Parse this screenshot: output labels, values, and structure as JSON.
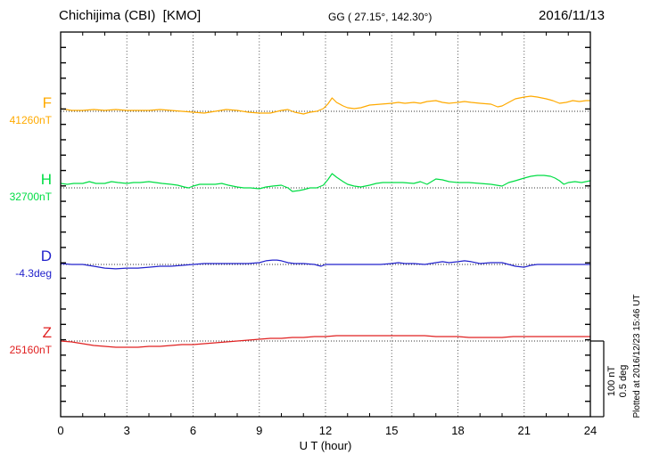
{
  "header": {
    "station": "Chichijima (CBI)  [KMO]",
    "coords": "GG ( 27.15°, 142.30°)",
    "date": "2016/11/13"
  },
  "x_axis": {
    "label": "U T (hour)"
  },
  "scale_bar": {
    "line1": "100 nT",
    "line2": "0.5 deg"
  },
  "plot_note": "Plotted at 2016/12/23 15:46 UT",
  "colors": {
    "F": "#ffaa00",
    "H": "#00dd44",
    "D": "#2222cc",
    "Z": "#e02020",
    "axis": "#000000",
    "grid": "#555555"
  },
  "chart_data": {
    "type": "line",
    "title": "Chichijima (CBI) [KMO] magnetogram for 2016/11/13",
    "xlabel": "U T (hour)",
    "x_range": [
      0,
      24
    ],
    "x_ticks": [
      0,
      3,
      6,
      9,
      12,
      15,
      18,
      21,
      24
    ],
    "grid": "vertical dotted lines every 3 h; dotted horizontal baseline per channel",
    "scale_reference": {
      "nT_per_bar": 100,
      "deg_per_bar": 0.5
    },
    "points_format": "[hour_UT, offset_from_base_value_in_unit]",
    "series": [
      {
        "name": "F",
        "base_label": "41260nT",
        "base_value": 41260,
        "unit": "nT",
        "color": "#ffaa00",
        "points": [
          [
            0,
            3.5
          ],
          [
            0.5,
            1.2
          ],
          [
            1,
            1.2
          ],
          [
            1.5,
            2.4
          ],
          [
            2,
            1.2
          ],
          [
            2.5,
            2.4
          ],
          [
            3,
            1.2
          ],
          [
            3.5,
            1.2
          ],
          [
            4,
            1.2
          ],
          [
            4.5,
            2.4
          ],
          [
            5,
            1.2
          ],
          [
            5.5,
            0
          ],
          [
            6,
            -1.2
          ],
          [
            6.5,
            -2.4
          ],
          [
            7,
            0
          ],
          [
            7.5,
            2.4
          ],
          [
            8,
            1.2
          ],
          [
            8.5,
            -1.2
          ],
          [
            9,
            -2.4
          ],
          [
            9.5,
            -2.4
          ],
          [
            10,
            1.2
          ],
          [
            10.3,
            2.4
          ],
          [
            10.6,
            -1.2
          ],
          [
            11,
            -3.5
          ],
          [
            11.3,
            -1.2
          ],
          [
            11.6,
            0
          ],
          [
            11.9,
            3.5
          ],
          [
            12.1,
            9.4
          ],
          [
            12.3,
            17.6
          ],
          [
            12.5,
            11.8
          ],
          [
            12.8,
            7.1
          ],
          [
            13,
            4.7
          ],
          [
            13.3,
            3.5
          ],
          [
            13.6,
            4.7
          ],
          [
            14,
            8.2
          ],
          [
            14.5,
            9.4
          ],
          [
            15,
            10.6
          ],
          [
            15.3,
            11.8
          ],
          [
            15.6,
            10.6
          ],
          [
            16,
            11.8
          ],
          [
            16.3,
            10.6
          ],
          [
            16.6,
            12.9
          ],
          [
            17,
            14.1
          ],
          [
            17.3,
            11.8
          ],
          [
            17.6,
            10.6
          ],
          [
            18,
            11.8
          ],
          [
            18.3,
            12.9
          ],
          [
            18.6,
            11.8
          ],
          [
            19,
            10.6
          ],
          [
            19.5,
            9.4
          ],
          [
            19.8,
            5.9
          ],
          [
            20,
            7.1
          ],
          [
            20.3,
            11.8
          ],
          [
            20.6,
            16.5
          ],
          [
            21,
            18.8
          ],
          [
            21.3,
            20
          ],
          [
            21.6,
            18.8
          ],
          [
            22,
            16.5
          ],
          [
            22.3,
            14.1
          ],
          [
            22.6,
            10.6
          ],
          [
            22.9,
            11.8
          ],
          [
            23.2,
            14.1
          ],
          [
            23.5,
            12.9
          ],
          [
            23.8,
            14.1
          ],
          [
            24,
            14.1
          ]
        ]
      },
      {
        "name": "H",
        "base_label": "32700nT",
        "base_value": 32700,
        "unit": "nT",
        "color": "#00dd44",
        "points": [
          [
            0,
            5.9
          ],
          [
            0.3,
            4.7
          ],
          [
            0.6,
            5.9
          ],
          [
            1,
            5.9
          ],
          [
            1.3,
            8.2
          ],
          [
            1.6,
            5.9
          ],
          [
            2,
            5.9
          ],
          [
            2.3,
            8.2
          ],
          [
            2.6,
            7.1
          ],
          [
            3,
            5.9
          ],
          [
            3.3,
            7.1
          ],
          [
            3.6,
            7.1
          ],
          [
            4,
            8.2
          ],
          [
            4.3,
            7.1
          ],
          [
            4.6,
            5.9
          ],
          [
            5,
            4.7
          ],
          [
            5.3,
            3.5
          ],
          [
            5.6,
            1.2
          ],
          [
            5.8,
            0
          ],
          [
            6,
            2.4
          ],
          [
            6.3,
            4.7
          ],
          [
            6.6,
            4.7
          ],
          [
            7,
            4.7
          ],
          [
            7.3,
            5.9
          ],
          [
            7.6,
            3.5
          ],
          [
            8,
            1.2
          ],
          [
            8.3,
            0
          ],
          [
            8.6,
            0
          ],
          [
            9,
            -1.2
          ],
          [
            9.3,
            1.2
          ],
          [
            9.6,
            2.4
          ],
          [
            10,
            3.5
          ],
          [
            10.3,
            0
          ],
          [
            10.5,
            -4.7
          ],
          [
            10.8,
            -3.5
          ],
          [
            11,
            -2.4
          ],
          [
            11.3,
            0
          ],
          [
            11.6,
            0
          ],
          [
            11.9,
            3.5
          ],
          [
            12.1,
            10.6
          ],
          [
            12.3,
            18.8
          ],
          [
            12.5,
            14.1
          ],
          [
            12.8,
            8.2
          ],
          [
            13,
            4.7
          ],
          [
            13.3,
            2.4
          ],
          [
            13.6,
            1.2
          ],
          [
            14,
            3.5
          ],
          [
            14.3,
            5.9
          ],
          [
            14.6,
            7.1
          ],
          [
            15,
            7.1
          ],
          [
            15.5,
            7.1
          ],
          [
            16,
            5.9
          ],
          [
            16.3,
            8.2
          ],
          [
            16.6,
            4.7
          ],
          [
            17,
            11.8
          ],
          [
            17.3,
            10.6
          ],
          [
            17.6,
            8.2
          ],
          [
            18,
            7.1
          ],
          [
            18.5,
            7.1
          ],
          [
            19,
            5.9
          ],
          [
            19.5,
            4.7
          ],
          [
            20,
            2.4
          ],
          [
            20.3,
            7.1
          ],
          [
            20.6,
            9.4
          ],
          [
            21,
            12.9
          ],
          [
            21.3,
            15.3
          ],
          [
            21.6,
            16.5
          ],
          [
            21.9,
            16.5
          ],
          [
            22.2,
            15.3
          ],
          [
            22.4,
            12.9
          ],
          [
            22.6,
            9.4
          ],
          [
            22.8,
            4.7
          ],
          [
            23,
            7.1
          ],
          [
            23.3,
            8.2
          ],
          [
            23.6,
            7.1
          ],
          [
            24,
            9.4
          ]
        ]
      },
      {
        "name": "D",
        "base_label": "-4.3deg",
        "base_value": -4.3,
        "unit": "deg",
        "color": "#2222cc",
        "points": [
          [
            0,
            0.006
          ],
          [
            0.5,
            0
          ],
          [
            1,
            0
          ],
          [
            1.5,
            -0.012
          ],
          [
            2,
            -0.024
          ],
          [
            2.5,
            -0.029
          ],
          [
            3,
            -0.024
          ],
          [
            3.5,
            -0.024
          ],
          [
            4,
            -0.018
          ],
          [
            4.5,
            -0.012
          ],
          [
            5,
            -0.012
          ],
          [
            5.5,
            -0.006
          ],
          [
            6,
            0
          ],
          [
            6.5,
            0.006
          ],
          [
            7,
            0.006
          ],
          [
            7.5,
            0.006
          ],
          [
            8,
            0.006
          ],
          [
            8.5,
            0.006
          ],
          [
            9,
            0.012
          ],
          [
            9.3,
            0.024
          ],
          [
            9.6,
            0.029
          ],
          [
            9.8,
            0.029
          ],
          [
            10,
            0.024
          ],
          [
            10.3,
            0.012
          ],
          [
            10.6,
            0.006
          ],
          [
            11,
            0.006
          ],
          [
            11.5,
            0
          ],
          [
            11.8,
            -0.012
          ],
          [
            12,
            0
          ],
          [
            12.5,
            0
          ],
          [
            13,
            0
          ],
          [
            13.5,
            0
          ],
          [
            14,
            0
          ],
          [
            14.5,
            0
          ],
          [
            15,
            0.006
          ],
          [
            15.3,
            0.012
          ],
          [
            15.6,
            0.006
          ],
          [
            16,
            0.006
          ],
          [
            16.5,
            0
          ],
          [
            17,
            0.012
          ],
          [
            17.3,
            0.018
          ],
          [
            17.6,
            0.012
          ],
          [
            18,
            0.018
          ],
          [
            18.3,
            0.024
          ],
          [
            18.6,
            0.018
          ],
          [
            19,
            0.006
          ],
          [
            19.5,
            0.012
          ],
          [
            20,
            0.012
          ],
          [
            20.3,
            0
          ],
          [
            20.6,
            -0.012
          ],
          [
            21,
            -0.018
          ],
          [
            21.3,
            -0.006
          ],
          [
            21.6,
            0
          ],
          [
            22,
            0
          ],
          [
            22.5,
            0
          ],
          [
            23,
            0
          ],
          [
            23.5,
            0
          ],
          [
            24,
            0
          ]
        ]
      },
      {
        "name": "Z",
        "base_label": "25160nT",
        "base_value": 25160,
        "unit": "nT",
        "color": "#e02020",
        "points": [
          [
            0,
            0
          ],
          [
            0.5,
            -1.2
          ],
          [
            1,
            -3.5
          ],
          [
            1.5,
            -5.9
          ],
          [
            2,
            -7.1
          ],
          [
            2.5,
            -8.2
          ],
          [
            3,
            -8.2
          ],
          [
            3.5,
            -8.2
          ],
          [
            4,
            -7.1
          ],
          [
            4.5,
            -7.1
          ],
          [
            5,
            -5.9
          ],
          [
            5.5,
            -4.7
          ],
          [
            6,
            -4.7
          ],
          [
            6.5,
            -3.5
          ],
          [
            7,
            -2.4
          ],
          [
            7.5,
            -1.2
          ],
          [
            8,
            0
          ],
          [
            8.5,
            1.2
          ],
          [
            9,
            2.4
          ],
          [
            9.5,
            3.5
          ],
          [
            10,
            3.5
          ],
          [
            10.5,
            4.7
          ],
          [
            11,
            4.7
          ],
          [
            11.5,
            5.9
          ],
          [
            12,
            5.9
          ],
          [
            12.5,
            7.1
          ],
          [
            13,
            7.1
          ],
          [
            14,
            7.1
          ],
          [
            15,
            7.1
          ],
          [
            16,
            7.1
          ],
          [
            16.5,
            7.1
          ],
          [
            17,
            5.9
          ],
          [
            18,
            5.9
          ],
          [
            18.5,
            4.7
          ],
          [
            19,
            4.7
          ],
          [
            20,
            4.7
          ],
          [
            20.5,
            5.9
          ],
          [
            21,
            5.9
          ],
          [
            22,
            5.9
          ],
          [
            23,
            5.9
          ],
          [
            24,
            5.9
          ]
        ]
      }
    ]
  }
}
